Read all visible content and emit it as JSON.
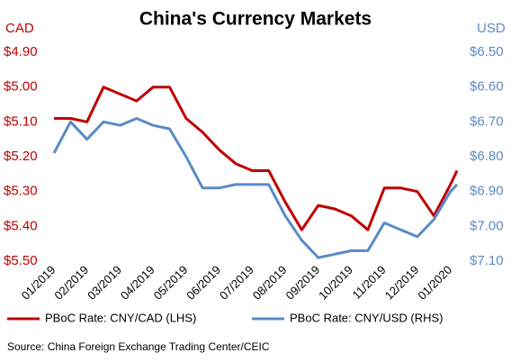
{
  "chart_data": {
    "type": "line",
    "title": "China's Currency Markets",
    "y_label": "CAD",
    "y2_label": "USD",
    "source": "Source: China Foreign Exchange Trading Center/CEIC",
    "x": [
      0,
      0.5,
      1,
      1.5,
      2,
      2.5,
      3,
      3.5,
      4,
      4.5,
      5,
      5.5,
      6,
      6.5,
      7,
      7.5,
      8,
      8.5,
      9,
      9.5,
      10,
      10.5,
      11,
      11.5,
      12,
      12.2
    ],
    "xlim": [
      0,
      12.2
    ],
    "xticks": [
      {
        "value": 0,
        "label": "01/2019"
      },
      {
        "value": 1,
        "label": "02/2019"
      },
      {
        "value": 2,
        "label": "03/2019"
      },
      {
        "value": 3,
        "label": "04/2019"
      },
      {
        "value": 4,
        "label": "05/2019"
      },
      {
        "value": 5,
        "label": "06/2019"
      },
      {
        "value": 6,
        "label": "07/2019"
      },
      {
        "value": 7,
        "label": "08/2019"
      },
      {
        "value": 8,
        "label": "09/2019"
      },
      {
        "value": 9,
        "label": "10/2019"
      },
      {
        "value": 10,
        "label": "11/2019"
      },
      {
        "value": 11,
        "label": "12/2019"
      },
      {
        "value": 12,
        "label": "01/2020"
      }
    ],
    "ylim": [
      5.5,
      4.9
    ],
    "yticks": [
      {
        "value": 4.9,
        "label": "$4.90"
      },
      {
        "value": 5.0,
        "label": "$5.00"
      },
      {
        "value": 5.1,
        "label": "$5.10"
      },
      {
        "value": 5.2,
        "label": "$5.20"
      },
      {
        "value": 5.3,
        "label": "$5.30"
      },
      {
        "value": 5.4,
        "label": "$5.40"
      },
      {
        "value": 5.5,
        "label": "$5.50"
      }
    ],
    "y2lim": [
      7.1,
      6.5
    ],
    "y2ticks": [
      {
        "value": 6.5,
        "label": "$6.50"
      },
      {
        "value": 6.6,
        "label": "$6.60"
      },
      {
        "value": 6.7,
        "label": "$6.70"
      },
      {
        "value": 6.8,
        "label": "$6.80"
      },
      {
        "value": 6.9,
        "label": "$6.90"
      },
      {
        "value": 7.0,
        "label": "$7.00"
      },
      {
        "value": 7.1,
        "label": "$7.10"
      }
    ],
    "series": [
      {
        "name": "PBoC Rate: CNY/CAD (LHS)",
        "color": "#c00000",
        "axis": "y",
        "values": [
          5.09,
          5.09,
          5.1,
          5.0,
          5.02,
          5.04,
          5.0,
          5.0,
          5.09,
          5.13,
          5.18,
          5.22,
          5.24,
          5.24,
          5.33,
          5.41,
          5.34,
          5.35,
          5.37,
          5.41,
          5.29,
          5.29,
          5.3,
          5.37,
          5.28,
          5.24
        ]
      },
      {
        "name": "PBoC Rate: CNY/USD (RHS)",
        "color": "#5b8ac6",
        "axis": "y2",
        "values": [
          6.79,
          6.7,
          6.75,
          6.7,
          6.71,
          6.69,
          6.71,
          6.72,
          6.8,
          6.89,
          6.89,
          6.88,
          6.88,
          6.88,
          6.97,
          7.04,
          7.09,
          7.08,
          7.07,
          7.07,
          6.99,
          7.01,
          7.03,
          6.98,
          6.9,
          6.88
        ]
      }
    ]
  }
}
